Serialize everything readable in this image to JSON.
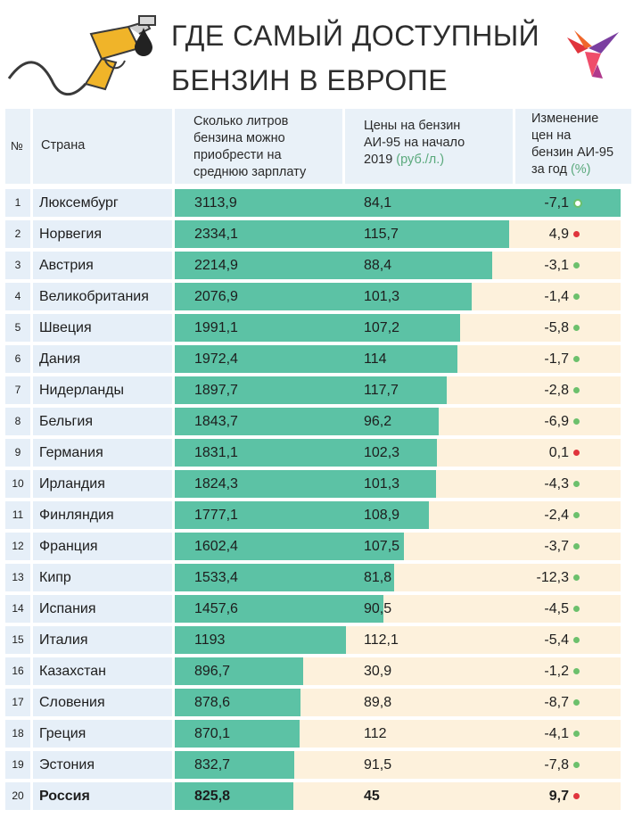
{
  "title": {
    "line1": "ГДЕ САМЫЙ ДОСТУПНЫЙ",
    "line2": "БЕНЗИН В ЕВРОПЕ"
  },
  "colors": {
    "bar": "#5cc2a5",
    "track": "#fdf1dc",
    "country_bg": "#e6eff8",
    "header_bg": "#e9f1f8",
    "dot_decrease": "#6cc06c",
    "dot_increase": "#e0343c"
  },
  "icons": {
    "pump": "fuel-pump-icon",
    "drop": "oil-drop-icon",
    "logo": "bird-logo-icon"
  },
  "columns": {
    "no": "№",
    "country": "Страна",
    "liters": [
      "Сколько литров",
      "бензина можно",
      "приобрести на",
      "среднюю зарплату"
    ],
    "price": [
      "Цены на бензин",
      "АИ-95 на начало",
      "2019"
    ],
    "price_unit": "(руб./л.)",
    "change": [
      "Изменение",
      "цен на",
      "бензин АИ-95",
      "за год"
    ],
    "change_unit": "(%)"
  },
  "chart_data": {
    "type": "table",
    "scale_max": 3113.9,
    "rows": [
      {
        "rank": "1",
        "country": "Люксембург",
        "liters": 3113.9,
        "liters_label": "3113,9",
        "price": "84,1",
        "change": "-7,1",
        "trend": "down",
        "hollow": true
      },
      {
        "rank": "2",
        "country": "Норвегия",
        "liters": 2334.1,
        "liters_label": "2334,1",
        "price": "115,7",
        "change": "4,9",
        "trend": "up"
      },
      {
        "rank": "3",
        "country": "Австрия",
        "liters": 2214.9,
        "liters_label": "2214,9",
        "price": "88,4",
        "change": "-3,1",
        "trend": "down"
      },
      {
        "rank": "4",
        "country": "Великобритания",
        "liters": 2076.9,
        "liters_label": "2076,9",
        "price": "101,3",
        "change": "-1,4",
        "trend": "down"
      },
      {
        "rank": "5",
        "country": "Швеция",
        "liters": 1991.1,
        "liters_label": "1991,1",
        "price": "107,2",
        "change": "-5,8",
        "trend": "down"
      },
      {
        "rank": "6",
        "country": "Дания",
        "liters": 1972.4,
        "liters_label": "1972,4",
        "price": "114",
        "change": "-1,7",
        "trend": "down"
      },
      {
        "rank": "7",
        "country": "Нидерланды",
        "liters": 1897.7,
        "liters_label": "1897,7",
        "price": "117,7",
        "change": "-2,8",
        "trend": "down"
      },
      {
        "rank": "8",
        "country": "Бельгия",
        "liters": 1843.7,
        "liters_label": "1843,7",
        "price": "96,2",
        "change": "-6,9",
        "trend": "down"
      },
      {
        "rank": "9",
        "country": "Германия",
        "liters": 1831.1,
        "liters_label": "1831,1",
        "price": "102,3",
        "change": "0,1",
        "trend": "up"
      },
      {
        "rank": "10",
        "country": "Ирландия",
        "liters": 1824.3,
        "liters_label": "1824,3",
        "price": "101,3",
        "change": "-4,3",
        "trend": "down"
      },
      {
        "rank": "11",
        "country": "Финляндия",
        "liters": 1777.1,
        "liters_label": "1777,1",
        "price": "108,9",
        "change": "-2,4",
        "trend": "down"
      },
      {
        "rank": "12",
        "country": "Франция",
        "liters": 1602.4,
        "liters_label": "1602,4",
        "price": "107,5",
        "change": "-3,7",
        "trend": "down"
      },
      {
        "rank": "13",
        "country": "Кипр",
        "liters": 1533.4,
        "liters_label": "1533,4",
        "price": "81,8",
        "change": "-12,3",
        "trend": "down"
      },
      {
        "rank": "14",
        "country": "Испания",
        "liters": 1457.6,
        "liters_label": "1457,6",
        "price": "90,5",
        "change": "-4,5",
        "trend": "down"
      },
      {
        "rank": "15",
        "country": "Италия",
        "liters": 1193,
        "liters_label": "1193",
        "price": "112,1",
        "change": "-5,4",
        "trend": "down"
      },
      {
        "rank": "16",
        "country": "Казахстан",
        "liters": 896.7,
        "liters_label": "896,7",
        "price": "30,9",
        "change": "-1,2",
        "trend": "down"
      },
      {
        "rank": "17",
        "country": "Словения",
        "liters": 878.6,
        "liters_label": "878,6",
        "price": "89,8",
        "change": "-8,7",
        "trend": "down"
      },
      {
        "rank": "18",
        "country": "Греция",
        "liters": 870.1,
        "liters_label": "870,1",
        "price": "112",
        "change": "-4,1",
        "trend": "down"
      },
      {
        "rank": "19",
        "country": "Эстония",
        "liters": 832.7,
        "liters_label": "832,7",
        "price": "91,5",
        "change": "-7,8",
        "trend": "down"
      },
      {
        "rank": "20",
        "country": "Россия",
        "liters": 825.8,
        "liters_label": "825,8",
        "price": "45",
        "change": "9,7",
        "trend": "up",
        "highlight": true
      }
    ]
  }
}
